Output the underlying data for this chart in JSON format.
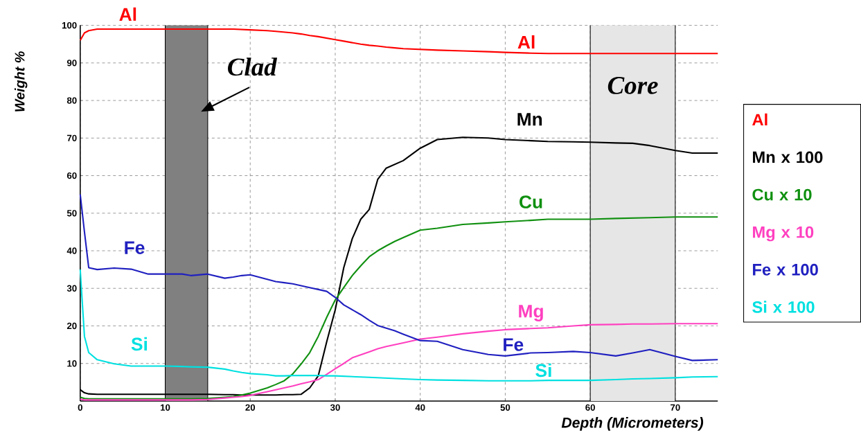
{
  "chart_data": {
    "type": "line",
    "xlabel": "Depth (Micrometers)",
    "ylabel": "Weight %",
    "x": [
      0,
      0.5,
      1,
      2,
      4,
      6,
      8,
      10,
      12,
      13,
      15,
      17,
      18,
      19,
      20,
      22,
      23,
      24,
      25,
      26,
      27,
      28,
      29,
      30,
      31,
      32,
      33,
      34,
      35,
      36,
      37,
      38,
      40,
      42,
      45,
      48,
      50,
      53,
      55,
      58,
      60,
      63,
      65,
      67,
      70,
      72,
      75
    ],
    "series": [
      {
        "name": "Al",
        "color": "#ff0000",
        "values": [
          96,
          98,
          98.6,
          99,
          99,
          99,
          99,
          99,
          99,
          99,
          99,
          99,
          99,
          98.9,
          98.8,
          98.6,
          98.4,
          98.2,
          98,
          97.7,
          97.3,
          97,
          96.6,
          96.2,
          95.8,
          95.4,
          95,
          94.7,
          94.5,
          94.2,
          94,
          93.8,
          93.6,
          93.4,
          93.2,
          93,
          92.8,
          92.6,
          92.5,
          92.5,
          92.5,
          92.5,
          92.5,
          92.5,
          92.5,
          92.5,
          92.5
        ]
      },
      {
        "name": "Mn x 100",
        "color": "#000000",
        "values": [
          3,
          2.2,
          1.9,
          1.8,
          1.8,
          1.8,
          1.8,
          1.8,
          1.8,
          1.8,
          1.8,
          1.7,
          1.7,
          1.6,
          1.6,
          1.6,
          1.6,
          1.7,
          1.7,
          1.8,
          3.5,
          6.7,
          15.8,
          24.3,
          35.5,
          43.2,
          48.4,
          51,
          59,
          62,
          63,
          64,
          67.3,
          69.6,
          70.2,
          70,
          69.6,
          69.3,
          69.1,
          69,
          68.9,
          68.7,
          68.6,
          68,
          66.7,
          66,
          66
        ]
      },
      {
        "name": "Cu x  10",
        "color": "#109010",
        "values": [
          1,
          0.7,
          0.6,
          0.6,
          0.6,
          0.6,
          0.6,
          0.6,
          0.6,
          0.6,
          0.7,
          1,
          1.2,
          1.6,
          2.1,
          3.5,
          4.4,
          5.4,
          7.2,
          9.9,
          12.9,
          17.2,
          22.3,
          26.9,
          30.2,
          33.4,
          36,
          38.4,
          40,
          41.3,
          42.5,
          43.5,
          45.5,
          46,
          47,
          47.4,
          47.7,
          48.1,
          48.4,
          48.4,
          48.4,
          48.6,
          48.7,
          48.8,
          49,
          49,
          49
        ]
      },
      {
        "name": "Mg x  10",
        "color": "#ff40c0",
        "values": [
          0.5,
          0.3,
          0.3,
          0.3,
          0.3,
          0.3,
          0.3,
          0.3,
          0.3,
          0.3,
          0.4,
          0.8,
          1,
          1.2,
          1.5,
          2.5,
          3,
          3.5,
          4,
          4.6,
          5.1,
          5.7,
          7.1,
          8.6,
          10,
          11.5,
          12.3,
          13.1,
          13.9,
          14.5,
          15,
          15.5,
          16.5,
          17,
          17.9,
          18.6,
          19,
          19.3,
          19.5,
          20,
          20.3,
          20.4,
          20.5,
          20.5,
          20.6,
          20.6,
          20.6
        ]
      },
      {
        "name": "Fe x 100",
        "color": "#2020c0",
        "values": [
          55,
          45,
          35.5,
          35,
          35.4,
          35.1,
          33.8,
          33.8,
          33.8,
          33.4,
          33.8,
          32.7,
          33,
          33.4,
          33.6,
          32.4,
          31.8,
          31.5,
          31.2,
          30.7,
          30.2,
          29.7,
          29.2,
          27.6,
          25.6,
          24.3,
          23,
          21.5,
          20.1,
          19.4,
          18.7,
          17.8,
          16.1,
          15.9,
          13.7,
          12.4,
          12,
          12.8,
          12.9,
          13.2,
          12.9,
          12,
          12.8,
          13.7,
          11.9,
          10.8,
          11
        ]
      },
      {
        "name": "Si  x 100",
        "color": "#00e0e0",
        "values": [
          35,
          17.2,
          12.9,
          11,
          9.9,
          9.3,
          9.3,
          9.3,
          9.2,
          9.1,
          9,
          8.5,
          8,
          7.6,
          7.3,
          7,
          6.7,
          6.7,
          6.8,
          6.8,
          6.8,
          6.8,
          6.7,
          6.7,
          6.6,
          6.5,
          6.4,
          6.3,
          6.2,
          6.1,
          6,
          5.9,
          5.7,
          5.6,
          5.5,
          5.4,
          5.4,
          5.4,
          5.5,
          5.5,
          5.5,
          5.7,
          5.9,
          6,
          6.2,
          6.4,
          6.5
        ]
      }
    ],
    "xlim": [
      0,
      75
    ],
    "ylim": [
      0,
      100
    ],
    "xticks": [
      0,
      10,
      20,
      30,
      40,
      50,
      60,
      70
    ],
    "yticks": [
      10,
      20,
      30,
      40,
      50,
      60,
      70,
      80,
      90,
      100
    ],
    "grid": true,
    "legend": "right",
    "line_style": "solid",
    "bands": [
      {
        "axis": "x",
        "from": 10,
        "to": 15,
        "label": "Clad",
        "color": "#808080"
      },
      {
        "axis": "x",
        "from": 60,
        "to": 70,
        "label": "Core",
        "color": "#e6e6e6"
      }
    ],
    "annotations": [
      "Al",
      "Al",
      "Mn",
      "Cu",
      "Mg",
      "Fe",
      "Si",
      "Fe",
      "Si"
    ]
  }
}
